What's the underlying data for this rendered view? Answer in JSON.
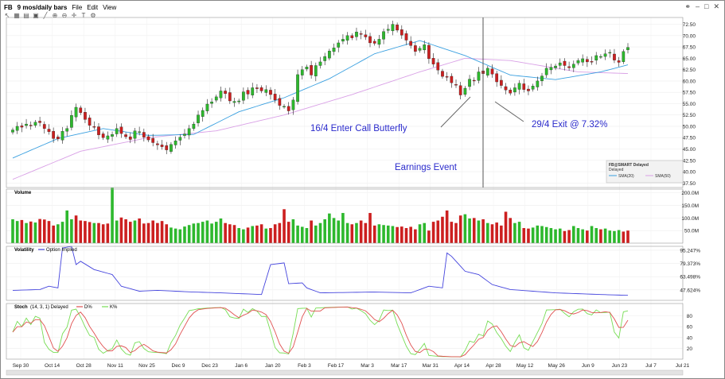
{
  "window": {
    "symbol": "FB",
    "period": "9 mos/daily bars",
    "menu": [
      "File",
      "Edit",
      "View"
    ]
  },
  "panels": {
    "volume_label": "Volume",
    "volatility_label": "Volatility",
    "volatility_series": "Option Implied",
    "stoch_label": "Stoch",
    "stoch_params": "(14, 3, 1) Delayed",
    "stoch_d": "D%",
    "stoch_k": "K%"
  },
  "legend_box": {
    "title": "FB@SMART Delayed",
    "sub": "Delayed",
    "sma20": "SMA(20)",
    "sma50": "SMA(50)"
  },
  "annotations": {
    "enter": "16/4 Enter Call Butterfly",
    "exit": "29/4 Exit @ 7.32%",
    "earnings": "Earnings Event"
  },
  "colors": {
    "up": "#2db82d",
    "down": "#cc1f1f",
    "sma20": "#3aa0e0",
    "sma50": "#d9a0e6",
    "vol_line": "#4444dd",
    "stoch_d": "#e05050",
    "stoch_k": "#77dd55",
    "annot_text": "#2b2bcc"
  },
  "chart_data": [
    {
      "type": "candlestick",
      "name": "price",
      "x_ticks": [
        "Sep 30",
        "Oct 14",
        "Oct 28",
        "Nov 11",
        "Nov 25",
        "Dec 9",
        "Dec 23",
        "Jan 6",
        "Jan 20",
        "Feb 3",
        "Feb 17",
        "Mar 3",
        "Mar 17",
        "Mar 31",
        "Apr 14",
        "Apr 28",
        "May 12",
        "May 26",
        "Jun 9",
        "Jun 23",
        "Jul 7",
        "Jul 21"
      ],
      "y_ticks": [
        "72.50",
        "70.00",
        "67.50",
        "65.00",
        "62.50",
        "60.00",
        "57.50",
        "55.00",
        "52.50",
        "50.00",
        "47.50",
        "45.00",
        "42.50",
        "40.00",
        "37.50"
      ],
      "ylim": [
        36.5,
        74
      ],
      "closes": [
        49.2,
        50.0,
        49.8,
        50.5,
        50.2,
        50.9,
        50.8,
        49.5,
        48.8,
        47.3,
        47.2,
        48.9,
        49.5,
        52.4,
        54.2,
        53.0,
        51.5,
        50.2,
        49.9,
        48.1,
        47.5,
        47.9,
        48.2,
        49.5,
        48.4,
        47.7,
        47.1,
        49.0,
        48.8,
        47.6,
        47.0,
        46.4,
        45.9,
        45.5,
        44.8,
        46.0,
        46.8,
        47.6,
        48.3,
        49.5,
        50.5,
        52.5,
        53.5,
        54.9,
        55.4,
        56.5,
        57.8,
        57.2,
        55.6,
        55.5,
        55.6,
        57.6,
        57.1,
        58.5,
        58.3,
        57.8,
        58.1,
        57.0,
        55.8,
        54.6,
        54.4,
        53.4,
        55.8,
        61.4,
        62.5,
        63.1,
        61.3,
        63.4,
        64.2,
        65.4,
        66.6,
        67.3,
        68.4,
        69.2,
        70.0,
        69.5,
        70.8,
        70.3,
        69.7,
        68.4,
        68.3,
        69.2,
        70.9,
        71.4,
        72.5,
        71.2,
        70.1,
        69.0,
        67.8,
        66.5,
        67.2,
        68.0,
        64.9,
        63.7,
        62.4,
        61.0,
        60.8,
        59.6,
        59.1,
        56.9,
        58.4,
        60.4,
        60.1,
        62.0,
        61.6,
        62.8,
        61.5,
        59.8,
        59.0,
        58.0,
        57.3,
        58.5,
        59.5,
        58.1,
        57.8,
        58.9,
        60.0,
        61.1,
        62.8,
        63.0,
        63.3,
        64.0,
        63.4,
        62.9,
        63.7,
        64.5,
        64.9,
        64.2,
        64.2,
        65.6,
        65.4,
        66.0,
        66.3,
        64.6,
        64.1,
        66.5,
        67.4
      ],
      "sma20_knots": [
        [
          0,
          43.0
        ],
        [
          10,
          47.3
        ],
        [
          20,
          49.5
        ],
        [
          30,
          48.0
        ],
        [
          40,
          48.2
        ],
        [
          50,
          53.2
        ],
        [
          60,
          56.3
        ],
        [
          70,
          60.5
        ],
        [
          80,
          66.0
        ],
        [
          90,
          68.9
        ],
        [
          100,
          65.6
        ],
        [
          110,
          61.3
        ],
        [
          120,
          60.3
        ],
        [
          130,
          62.0
        ],
        [
          140,
          64.6
        ]
      ],
      "sma50_knots": [
        [
          0,
          38.3
        ],
        [
          15,
          44.5
        ],
        [
          30,
          47.5
        ],
        [
          45,
          49.0
        ],
        [
          60,
          52.5
        ],
        [
          75,
          57.0
        ],
        [
          90,
          62.0
        ],
        [
          100,
          65.0
        ],
        [
          110,
          64.5
        ],
        [
          125,
          62.0
        ],
        [
          140,
          61.5
        ]
      ]
    },
    {
      "type": "bar",
      "name": "volume",
      "y_ticks": [
        "200.0M",
        "150.0M",
        "100.0M",
        "50.0M"
      ],
      "ylim": [
        0,
        215
      ],
      "values_M": [
        95,
        88,
        92,
        80,
        86,
        82,
        96,
        94,
        88,
        70,
        75,
        85,
        130,
        95,
        110,
        90,
        88,
        84,
        80,
        80,
        75,
        78,
        220,
        90,
        102,
        95,
        85,
        90,
        98,
        78,
        80,
        90,
        80,
        88,
        75,
        62,
        58,
        55,
        66,
        72,
        78,
        80,
        85,
        90,
        78,
        85,
        98,
        80,
        75,
        72,
        60,
        55,
        62,
        68,
        70,
        75,
        58,
        60,
        75,
        80,
        135,
        85,
        95,
        70,
        65,
        60,
        90,
        70,
        80,
        95,
        118,
        100,
        90,
        120,
        80,
        75,
        80,
        90,
        80,
        120,
        70,
        75,
        72,
        70,
        68,
        64,
        66,
        60,
        65,
        55,
        75,
        80,
        50,
        85,
        90,
        105,
        130,
        85,
        80,
        110,
        115,
        98,
        100,
        90,
        95,
        80,
        75,
        82,
        70,
        125,
        100,
        80,
        85,
        60,
        58,
        62,
        70,
        68,
        64,
        60,
        55,
        58,
        48,
        52,
        68,
        60,
        55,
        50,
        68,
        60,
        55,
        58,
        50,
        48,
        52,
        46,
        50,
        42,
        55,
        48
      ],
      "up": [
        1,
        1,
        0,
        1,
        0,
        1,
        0,
        0,
        0,
        0,
        1,
        1,
        1,
        1,
        0,
        0,
        0,
        0,
        1,
        0,
        0,
        0,
        1,
        1,
        0,
        0,
        0,
        1,
        0,
        0,
        0,
        0,
        0,
        0,
        0,
        1,
        1,
        1,
        1,
        1,
        1,
        1,
        1,
        1,
        1,
        1,
        1,
        0,
        0,
        0,
        1,
        1,
        0,
        1,
        0,
        0,
        1,
        0,
        0,
        0,
        0,
        0,
        1,
        1,
        1,
        1,
        0,
        1,
        1,
        1,
        1,
        1,
        1,
        1,
        1,
        0,
        1,
        0,
        0,
        0,
        0,
        1,
        1,
        1,
        1,
        0,
        0,
        0,
        0,
        0,
        1,
        1,
        0,
        0,
        0,
        0,
        0,
        0,
        0,
        0,
        1,
        1,
        0,
        1,
        0,
        1,
        0,
        0,
        0,
        0,
        0,
        1,
        1,
        0,
        0,
        1,
        1,
        1,
        1,
        1,
        1,
        1,
        0,
        0,
        1,
        1,
        1,
        0,
        1,
        1,
        0,
        1,
        1,
        1,
        1,
        0,
        0,
        1,
        1
      ]
    },
    {
      "type": "line",
      "name": "option implied volatility",
      "y_ticks": [
        "95.247%",
        "79.373%",
        "63.498%",
        "47.624%"
      ],
      "ylim": [
        35,
        100
      ],
      "knots": [
        [
          0,
          47
        ],
        [
          6,
          48
        ],
        [
          8,
          52
        ],
        [
          10,
          50
        ],
        [
          11,
          98
        ],
        [
          13,
          100
        ],
        [
          14,
          78
        ],
        [
          15,
          82
        ],
        [
          18,
          72
        ],
        [
          22,
          66
        ],
        [
          24,
          52
        ],
        [
          28,
          46
        ],
        [
          32,
          47
        ],
        [
          40,
          45
        ],
        [
          46,
          44
        ],
        [
          55,
          42
        ],
        [
          57,
          78
        ],
        [
          60,
          80
        ],
        [
          61,
          55
        ],
        [
          64,
          56
        ],
        [
          65,
          50
        ],
        [
          68,
          44
        ],
        [
          80,
          45
        ],
        [
          88,
          44
        ],
        [
          92,
          52
        ],
        [
          95,
          50
        ],
        [
          96,
          92
        ],
        [
          97,
          88
        ],
        [
          100,
          70
        ],
        [
          103,
          66
        ],
        [
          106,
          54
        ],
        [
          110,
          48
        ],
        [
          120,
          44
        ],
        [
          130,
          42
        ],
        [
          136,
          41
        ],
        [
          138,
          44
        ],
        [
          140,
          46
        ]
      ]
    },
    {
      "type": "line",
      "name": "stochastic",
      "y_ticks": [
        "80",
        "60",
        "40",
        "20"
      ],
      "ylim": [
        0,
        103
      ]
    }
  ]
}
